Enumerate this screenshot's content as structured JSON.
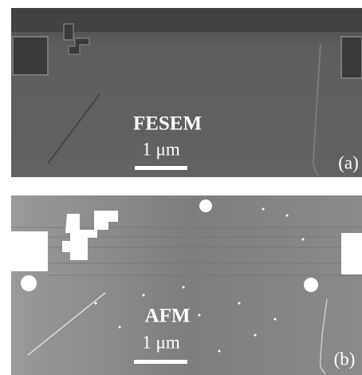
{
  "panels": [
    {
      "technique": "FESEM",
      "scale": "1 μm",
      "label": "(a)"
    },
    {
      "technique": "AFM",
      "scale": "1 μm",
      "label": "(b)"
    }
  ]
}
